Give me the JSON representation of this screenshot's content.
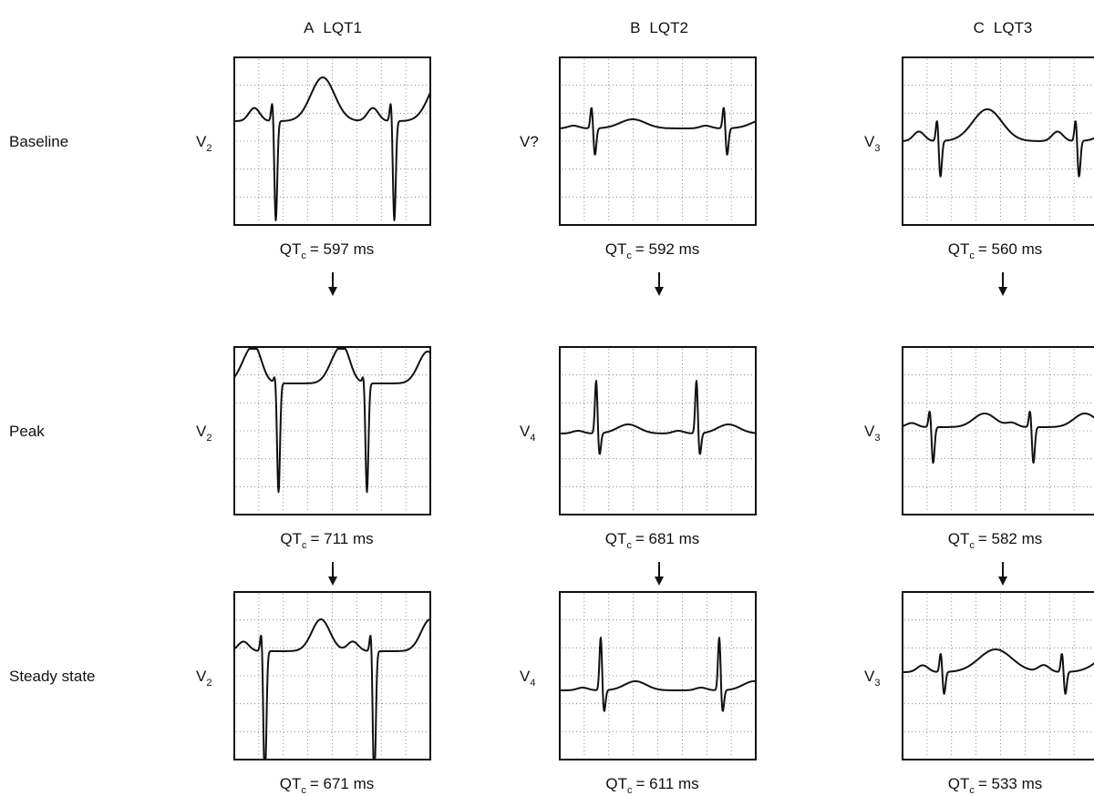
{
  "columns": [
    {
      "letter": "A",
      "title": "LQT1"
    },
    {
      "letter": "B",
      "title": "LQT2"
    },
    {
      "letter": "C",
      "title": "LQT3"
    }
  ],
  "rows": [
    "Baseline",
    "Peak",
    "Steady state"
  ],
  "panels": [
    [
      {
        "lead": "V",
        "lead_sub": "2",
        "qtc": "QT",
        "qtc_sub": "c",
        "qtc_value": "= 597 ms"
      },
      {
        "lead": "V?",
        "qtc": "QT",
        "qtc_sub": "c",
        "qtc_value": "= 592 ms"
      },
      {
        "lead": "V",
        "lead_sub": "3",
        "qtc": "QT",
        "qtc_sub": "c",
        "qtc_value": "= 560 ms"
      }
    ],
    [
      {
        "lead": "V",
        "lead_sub": "2",
        "qtc": "QT",
        "qtc_sub": "c",
        "qtc_value": "= 711 ms"
      },
      {
        "lead": "V",
        "lead_sub": "4",
        "qtc": "QT",
        "qtc_sub": "c",
        "qtc_value": "= 681 ms"
      },
      {
        "lead": "V",
        "lead_sub": "3",
        "qtc": "QT",
        "qtc_sub": "c",
        "qtc_value": "= 582 ms"
      }
    ],
    [
      {
        "lead": "V",
        "lead_sub": "2",
        "qtc": "QT",
        "qtc_sub": "c",
        "qtc_value": "= 671 ms"
      },
      {
        "lead": "V",
        "lead_sub": "4",
        "qtc": "QT",
        "qtc_sub": "c",
        "qtc_value": "= 611 ms"
      },
      {
        "lead": "V",
        "lead_sub": "3",
        "qtc": "QT",
        "qtc_sub": "c",
        "qtc_value": "= 533 ms"
      }
    ]
  ]
}
